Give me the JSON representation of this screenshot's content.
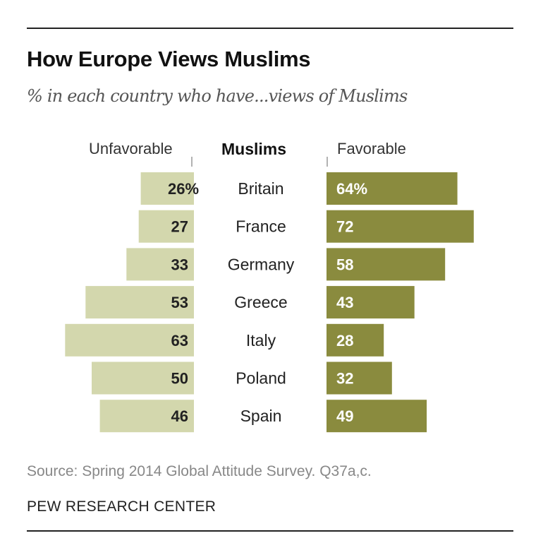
{
  "title": "How Europe Views Muslims",
  "subtitle": "% in each country who have...views of Muslims",
  "source": "Source: Spring 2014 Global Attitude Survey. Q37a,c.",
  "org": "PEW RESEARCH CENTER",
  "colors": {
    "unfavorable": "#d3d7ad",
    "favorable": "#8a8b3e"
  },
  "chart_data": {
    "type": "bar",
    "title": "How Europe Views Muslims",
    "column_header": "Muslims",
    "categories": [
      "Britain",
      "France",
      "Germany",
      "Greece",
      "Italy",
      "Poland",
      "Spain"
    ],
    "series": [
      {
        "name": "Unfavorable",
        "values": [
          26,
          27,
          33,
          53,
          63,
          50,
          46
        ],
        "labels": [
          "26%",
          "27",
          "33",
          "53",
          "63",
          "50",
          "46"
        ]
      },
      {
        "name": "Favorable",
        "values": [
          64,
          72,
          58,
          43,
          28,
          32,
          49
        ],
        "labels": [
          "64%",
          "72",
          "58",
          "43",
          "28",
          "32",
          "49"
        ]
      }
    ],
    "unit": "%"
  }
}
